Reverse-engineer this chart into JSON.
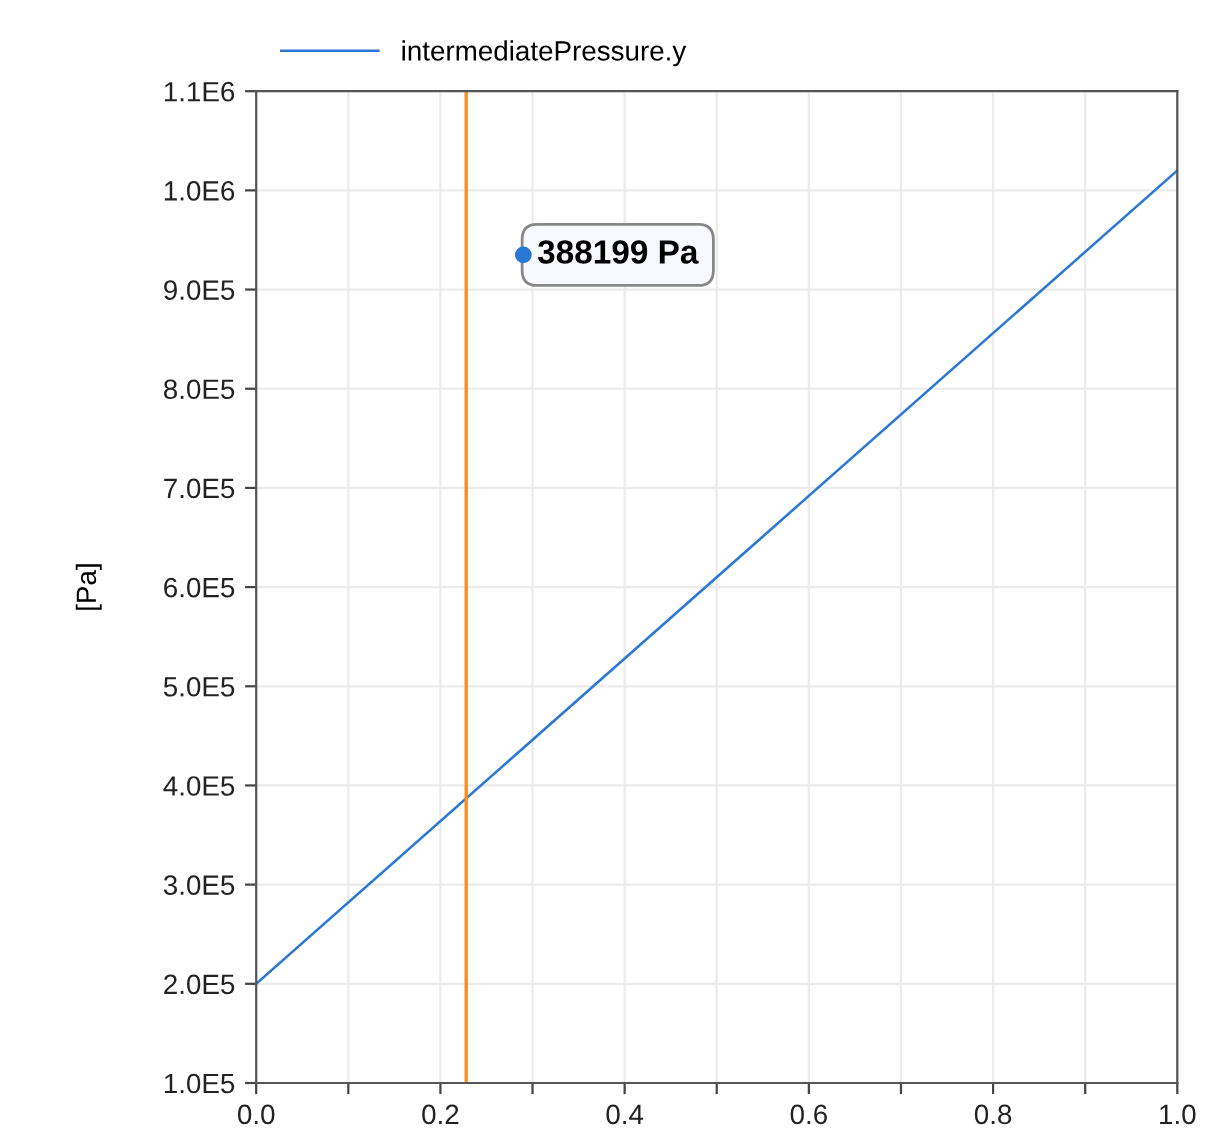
{
  "chart_data": {
    "type": "line",
    "ylabel": "[Pa]",
    "x": [
      0.0,
      1.0
    ],
    "series": [
      {
        "name": "intermediatePressure.y",
        "color": "#2a77d4",
        "values": [
          200000,
          1020000
        ]
      }
    ],
    "xlim": [
      0.0,
      1.0
    ],
    "xticks": [
      {
        "value": 0.0,
        "label": "0.0"
      },
      {
        "value": 0.1,
        "label": null
      },
      {
        "value": 0.2,
        "label": "0.2"
      },
      {
        "value": 0.3,
        "label": null
      },
      {
        "value": 0.4,
        "label": "0.4"
      },
      {
        "value": 0.5,
        "label": null
      },
      {
        "value": 0.6,
        "label": "0.6"
      },
      {
        "value": 0.7,
        "label": null
      },
      {
        "value": 0.8,
        "label": "0.8"
      },
      {
        "value": 0.9,
        "label": null
      },
      {
        "value": 1.0,
        "label": "1.0"
      }
    ],
    "ylim": [
      100000,
      1100000
    ],
    "yticks": [
      {
        "value": 100000,
        "label": "1.0E5"
      },
      {
        "value": 200000,
        "label": "2.0E5"
      },
      {
        "value": 300000,
        "label": "3.0E5"
      },
      {
        "value": 400000,
        "label": "4.0E5"
      },
      {
        "value": 500000,
        "label": "5.0E5"
      },
      {
        "value": 600000,
        "label": "6.0E5"
      },
      {
        "value": 700000,
        "label": "7.0E5"
      },
      {
        "value": 800000,
        "label": "8.0E5"
      },
      {
        "value": 900000,
        "label": "9.0E5"
      },
      {
        "value": 1000000,
        "label": "1.0E6"
      },
      {
        "value": 1100000,
        "label": "1.1E6"
      }
    ],
    "ref_lines": [
      {
        "axis": "x",
        "value": 0.228,
        "color": "#ff8c1a"
      }
    ],
    "annotations": [
      "388199 Pa"
    ],
    "grid": true,
    "legend": "top left",
    "line_style": "solid",
    "marker": "none"
  }
}
